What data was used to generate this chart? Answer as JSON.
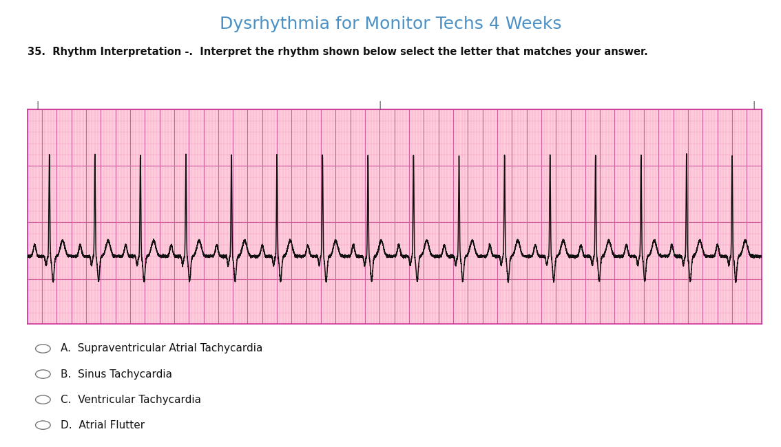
{
  "title": "Dysrhythmia for Monitor Techs 4 Weeks",
  "title_color": "#4a90c4",
  "question_text": "35.  Rhythm Interpretation -.  Interpret the rhythm shown below select the letter that matches your answer.",
  "options": [
    "A.  Supraventricular Atrial Tachycardia",
    "B.  Sinus Tachycardia",
    "C.  Ventricular Tachycardia",
    "D.  Atrial Flutter"
  ],
  "bg_color": "#ffffff",
  "ecg_bg": "#ffccdd",
  "grid_minor_color": "#f0a0c0",
  "grid_major_color": "#d060a0",
  "ecg_line_color": "#111111",
  "ecg_border_color": "#cc3399",
  "fig_width": 11.34,
  "fig_height": 6.5,
  "dpi": 100
}
